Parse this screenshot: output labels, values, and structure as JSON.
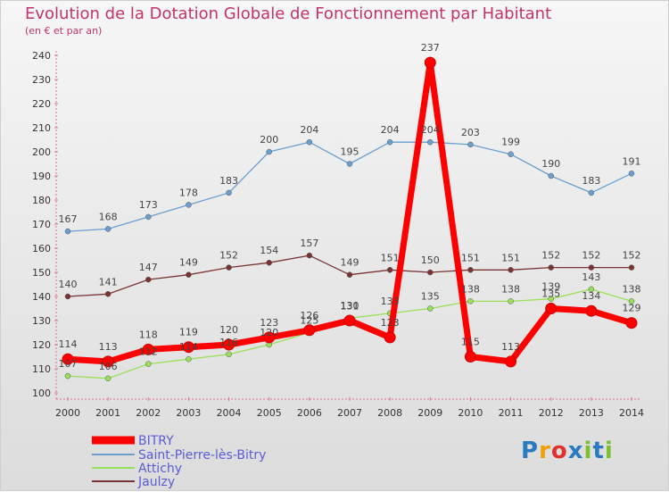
{
  "title": "Evolution de la Dotation Globale de Fonctionnement par Habitant",
  "subtitle": "(en € et par an)",
  "logo_text": "Proxiti",
  "chart_data": {
    "type": "line",
    "x": [
      2000,
      2001,
      2002,
      2003,
      2004,
      2005,
      2006,
      2007,
      2008,
      2009,
      2010,
      2011,
      2012,
      2013,
      2014
    ],
    "ylim": [
      100,
      240
    ],
    "yticks": [
      100,
      110,
      120,
      130,
      140,
      150,
      160,
      170,
      180,
      190,
      200,
      210,
      220,
      230,
      240
    ],
    "grid": false,
    "legend_position": "bottom-left",
    "series": [
      {
        "name": "BITRY",
        "color": "#ff0000",
        "values": [
          114,
          113,
          118,
          119,
          120,
          123,
          126,
          130,
          123,
          237,
          115,
          113,
          135,
          134,
          129
        ]
      },
      {
        "name": "Saint-Pierre-lès-Bitry",
        "color": "#6a9fd0",
        "values": [
          167,
          168,
          173,
          178,
          183,
          200,
          204,
          195,
          204,
          204,
          203,
          199,
          190,
          183,
          191
        ]
      },
      {
        "name": "Attichy",
        "color": "#99e05a",
        "values": [
          107,
          106,
          112,
          114,
          116,
          120,
          125,
          131,
          133,
          135,
          138,
          138,
          139,
          143,
          138
        ]
      },
      {
        "name": "Jaulzy",
        "color": "#7a3333",
        "values": [
          140,
          141,
          147,
          149,
          152,
          154,
          157,
          149,
          151,
          150,
          151,
          151,
          152,
          152,
          152
        ]
      }
    ]
  }
}
